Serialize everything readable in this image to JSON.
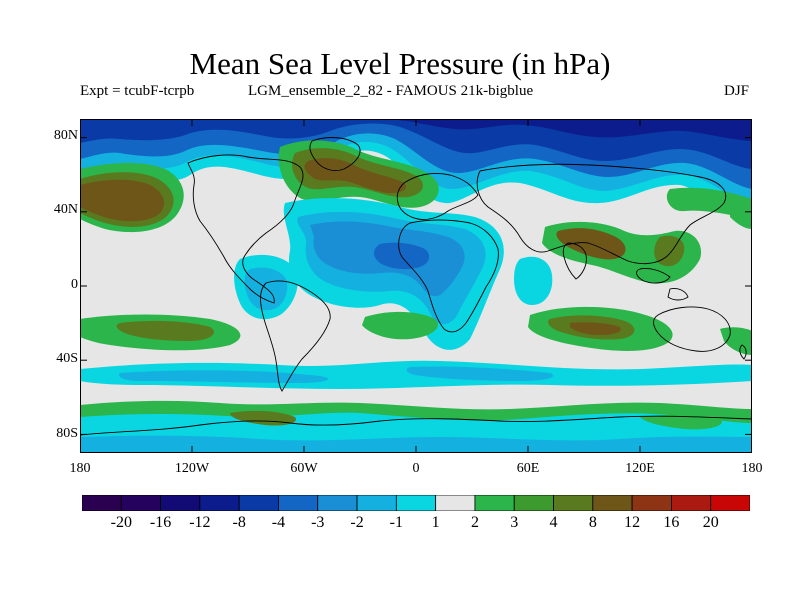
{
  "title": "Mean Sea Level Pressure (in hPa)",
  "subtitle": {
    "experiment": "Expt = tcubF-tcrpb",
    "run": "LGM_ensemble_2_82 - FAMOUS 21k-bigblue",
    "season": "DJF"
  },
  "axes": {
    "lat_ticks": [
      "80N",
      "40N",
      "0",
      "40S",
      "80S"
    ],
    "lat_values": [
      80,
      40,
      0,
      -40,
      -80
    ],
    "lat_range": [
      -90,
      90
    ],
    "lon_ticks": [
      "180",
      "120W",
      "60W",
      "0",
      "60E",
      "120E",
      "180"
    ],
    "lon_values": [
      -180,
      -120,
      -60,
      0,
      60,
      120,
      180
    ],
    "lon_range": [
      -180,
      180
    ]
  },
  "colorbar": {
    "labels": [
      "-20",
      "-16",
      "-12",
      "-8",
      "-4",
      "-3",
      "-2",
      "-1",
      "1",
      "2",
      "3",
      "4",
      "8",
      "12",
      "16",
      "20"
    ],
    "colors": [
      "#24025e",
      "#130b75",
      "#0d1c8c",
      "#0a3aa5",
      "#1366c4",
      "#1a8fd6",
      "#14b1e0",
      "#0ad6e2",
      "#e6e6e6",
      "#2bb54b",
      "#3c9a2e",
      "#597a1e",
      "#6e5618",
      "#8c3414",
      "#ab1a10",
      "#c90606"
    ]
  }
}
